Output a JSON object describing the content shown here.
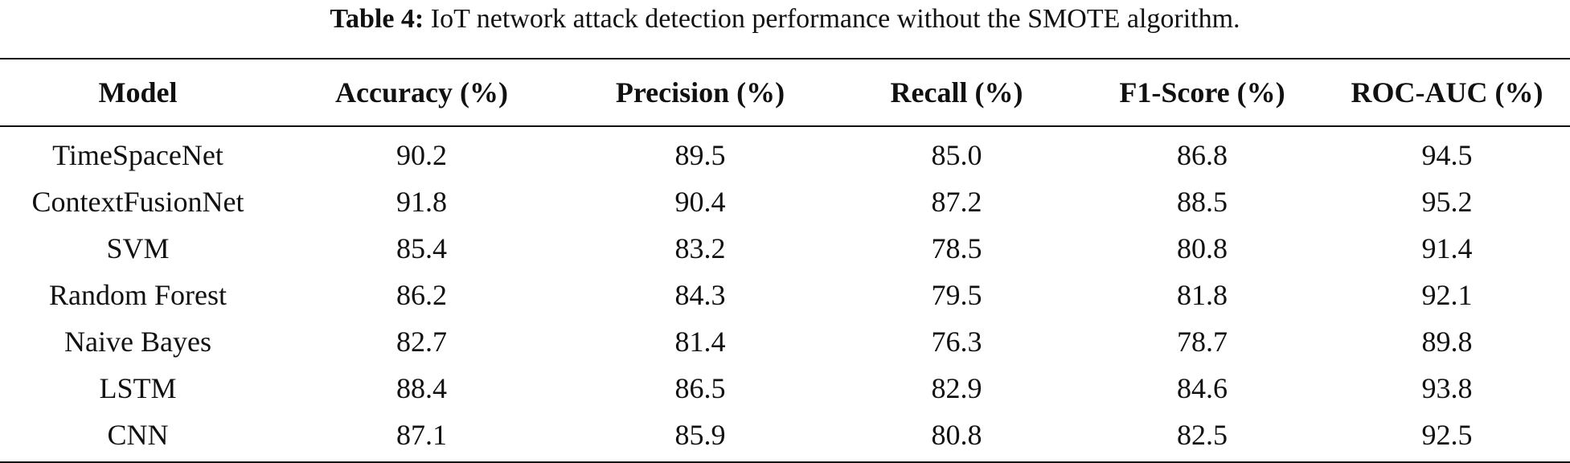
{
  "caption": {
    "label": "Table 4:",
    "text": "IoT network attack detection performance without the SMOTE algorithm."
  },
  "table": {
    "headers": [
      "Model",
      "Accuracy (%)",
      "Precision (%)",
      "Recall (%)",
      "F1-Score (%)",
      "ROC-AUC (%)"
    ],
    "rows": [
      [
        "TimeSpaceNet",
        "90.2",
        "89.5",
        "85.0",
        "86.8",
        "94.5"
      ],
      [
        "ContextFusionNet",
        "91.8",
        "90.4",
        "87.2",
        "88.5",
        "95.2"
      ],
      [
        "SVM",
        "85.4",
        "83.2",
        "78.5",
        "80.8",
        "91.4"
      ],
      [
        "Random Forest",
        "86.2",
        "84.3",
        "79.5",
        "81.8",
        "92.1"
      ],
      [
        "Naive Bayes",
        "82.7",
        "81.4",
        "76.3",
        "78.7",
        "89.8"
      ],
      [
        "LSTM",
        "88.4",
        "86.5",
        "82.9",
        "84.6",
        "93.8"
      ],
      [
        "CNN",
        "87.1",
        "85.9",
        "80.8",
        "82.5",
        "92.5"
      ]
    ]
  }
}
